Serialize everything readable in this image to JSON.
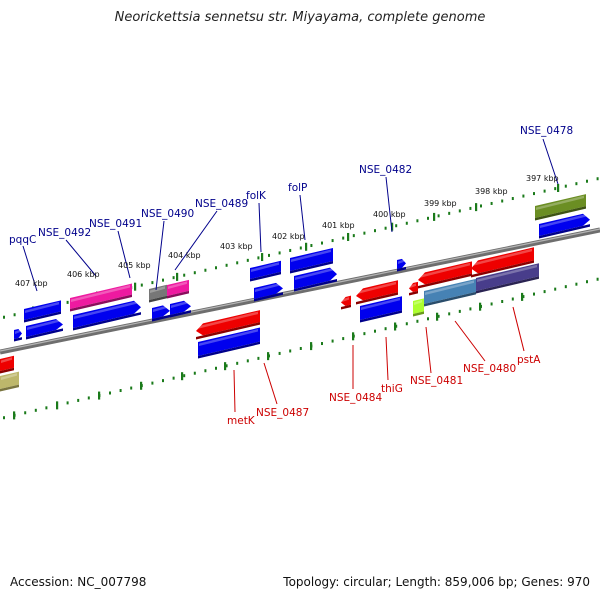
{
  "title": "Neorickettsia sennetsu str. Miyayama, complete genome",
  "footer": {
    "accession": "Accession: NC_007798",
    "summary": "Topology: circular; Length: 859,006 bp; Genes: 970"
  },
  "colors": {
    "forward_label": "#00008b",
    "reverse_label": "#cc0000",
    "backbone": "#808080",
    "ticks": "#1a7a1a",
    "blue_gene": "#0000ee",
    "red_gene": "#ee0000",
    "magenta_gene": "#ee1aa0",
    "olive_gene": "#6b8e23"
  },
  "scale": {
    "kbp_labels": [
      "407 kbp",
      "406 kbp",
      "405 kbp",
      "404 kbp",
      "403 kbp",
      "402 kbp",
      "401 kbp",
      "400 kbp",
      "399 kbp",
      "398 kbp",
      "397 kbp"
    ]
  },
  "forward_gene_labels": [
    "pqqC",
    "NSE_0492",
    "NSE_0491",
    "NSE_0490",
    "NSE_0489",
    "folK",
    "folP",
    "NSE_0482",
    "NSE_0478"
  ],
  "reverse_gene_labels": [
    "metK",
    "NSE_0487",
    "NSE_0484",
    "thiG",
    "NSE_0481",
    "NSE_0480",
    "pstA"
  ]
}
